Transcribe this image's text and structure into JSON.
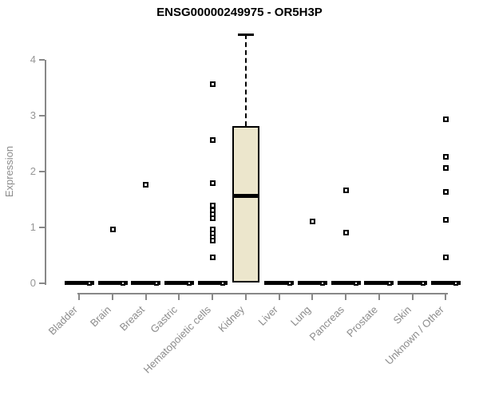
{
  "title": "ENSG00000249975 - OR5H3P",
  "chart_data": {
    "type": "boxplot",
    "title": "ENSG00000249975 - OR5H3P",
    "xlabel": "",
    "ylabel": "Expression",
    "ylim": [
      0,
      4.6
    ],
    "yticks": [
      0,
      1,
      2,
      3,
      4
    ],
    "grid": false,
    "legend": "none",
    "categories": [
      "Bladder",
      "Brain",
      "Breast",
      "Gastric",
      "Hematopoietic cells",
      "Kidney",
      "Liver",
      "Lung",
      "Pancreas",
      "Prostate",
      "Skin",
      "Unknown / Other"
    ],
    "series": [
      {
        "category": "Bladder",
        "box": {
          "q1": 0,
          "median": 0,
          "q3": 0,
          "whisker_low": 0,
          "whisker_high": 0
        },
        "points": [
          0
        ]
      },
      {
        "category": "Brain",
        "box": {
          "q1": 0,
          "median": 0,
          "q3": 0,
          "whisker_low": 0,
          "whisker_high": 0
        },
        "points": [
          0,
          0.97
        ]
      },
      {
        "category": "Breast",
        "box": {
          "q1": 0,
          "median": 0,
          "q3": 0,
          "whisker_low": 0,
          "whisker_high": 0
        },
        "points": [
          0,
          1.77
        ]
      },
      {
        "category": "Gastric",
        "box": {
          "q1": 0,
          "median": 0,
          "q3": 0,
          "whisker_low": 0,
          "whisker_high": 0
        },
        "points": [
          0
        ]
      },
      {
        "category": "Hematopoietic cells",
        "box": {
          "q1": 0,
          "median": 0,
          "q3": 0,
          "whisker_low": 0,
          "whisker_high": 0
        },
        "points": [
          0,
          0.46,
          0.77,
          0.83,
          0.9,
          0.97,
          1.16,
          1.23,
          1.31,
          1.39,
          1.79,
          2.57,
          3.57
        ]
      },
      {
        "category": "Kidney",
        "box": {
          "q1": 0.02,
          "median": 1.57,
          "q3": 2.81,
          "whisker_low": 0.02,
          "whisker_high": 4.46
        },
        "points": []
      },
      {
        "category": "Liver",
        "box": {
          "q1": 0,
          "median": 0,
          "q3": 0,
          "whisker_low": 0,
          "whisker_high": 0
        },
        "points": [
          0
        ]
      },
      {
        "category": "Lung",
        "box": {
          "q1": 0,
          "median": 0,
          "q3": 0,
          "whisker_low": 0,
          "whisker_high": 0
        },
        "points": [
          0,
          1.11
        ]
      },
      {
        "category": "Pancreas",
        "box": {
          "q1": 0,
          "median": 0,
          "q3": 0,
          "whisker_low": 0,
          "whisker_high": 0
        },
        "points": [
          0,
          0.91,
          1.66
        ]
      },
      {
        "category": "Prostate",
        "box": {
          "q1": 0,
          "median": 0,
          "q3": 0,
          "whisker_low": 0,
          "whisker_high": 0
        },
        "points": [
          0
        ]
      },
      {
        "category": "Skin",
        "box": {
          "q1": 0,
          "median": 0,
          "q3": 0,
          "whisker_low": 0,
          "whisker_high": 0
        },
        "points": [
          0
        ]
      },
      {
        "category": "Unknown / Other",
        "box": {
          "q1": 0,
          "median": 0,
          "q3": 0,
          "whisker_low": 0,
          "whisker_high": 0
        },
        "points": [
          0,
          0.46,
          1.14,
          1.63,
          2.06,
          2.27,
          2.93
        ]
      }
    ],
    "colors": {
      "box_fill": "#ECE6CC",
      "box_border": "#000000",
      "median": "#000000",
      "point_fill": "#ffffff",
      "point_border": "#000000",
      "axis": "#888888",
      "tick_label": "#8c8c8c",
      "title": "#000000",
      "background": "#ffffff"
    }
  }
}
